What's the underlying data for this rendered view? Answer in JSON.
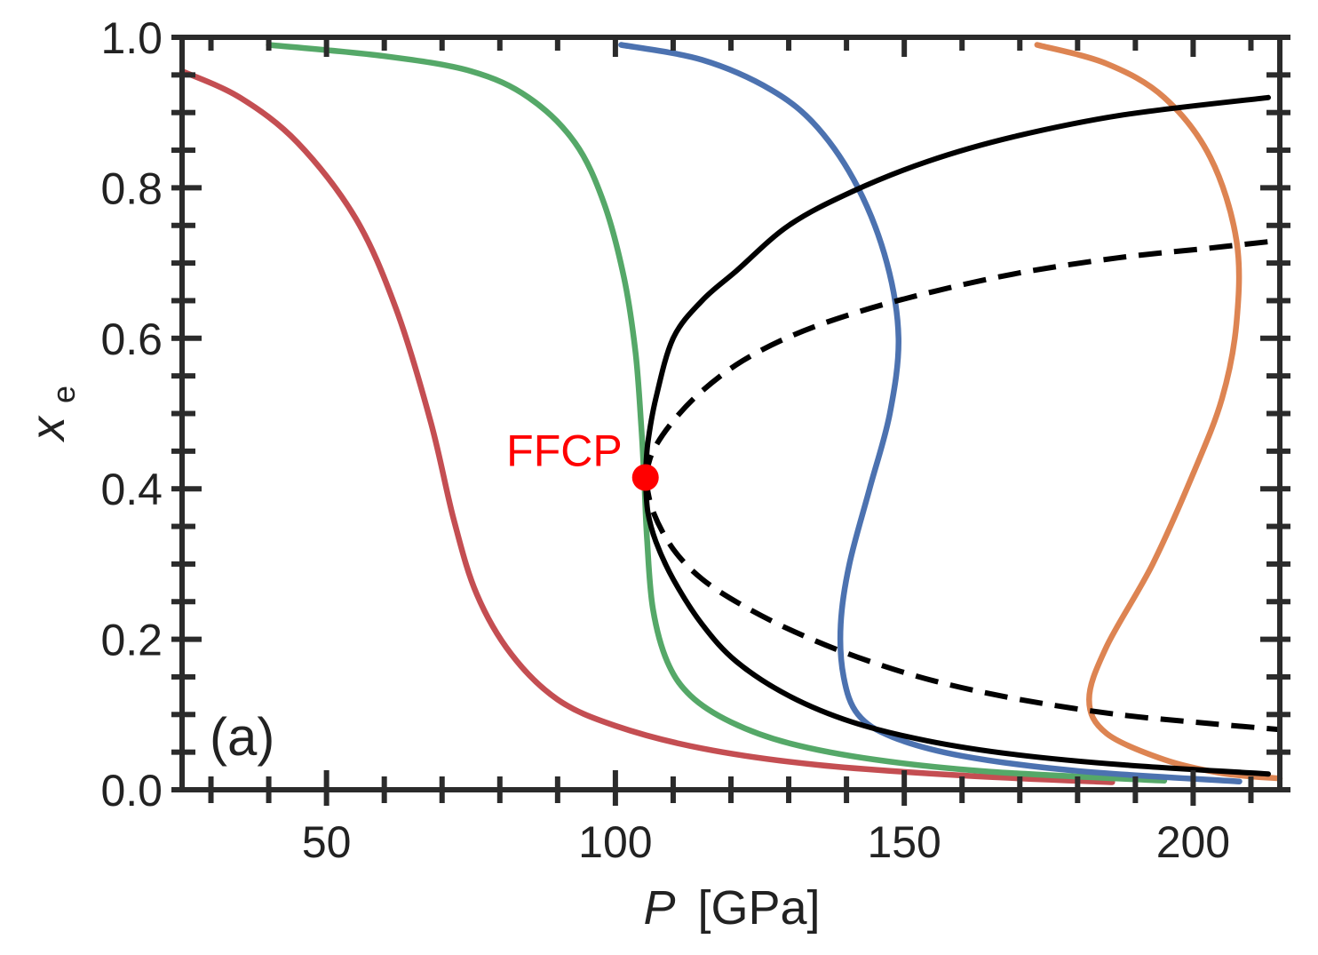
{
  "chart_data": {
    "type": "line",
    "title": "",
    "xlabel": {
      "symbol": "P",
      "unit": "[GPa]"
    },
    "ylabel": {
      "base": "x",
      "sub": "e"
    },
    "xlim": [
      25,
      215
    ],
    "ylim": [
      0.0,
      1.0
    ],
    "xticks": [
      50,
      100,
      150,
      200
    ],
    "xtick_labels": [
      "50",
      "100",
      "150",
      "200"
    ],
    "xminor": [
      30,
      40,
      60,
      70,
      80,
      90,
      110,
      120,
      130,
      140,
      160,
      170,
      180,
      190,
      210
    ],
    "yticks": [
      0.0,
      0.2,
      0.4,
      0.6,
      0.8,
      1.0
    ],
    "ytick_labels": [
      "0.0",
      "0.2",
      "0.4",
      "0.6",
      "0.8",
      "1.0"
    ],
    "yminor": [
      0.05,
      0.1,
      0.15,
      0.25,
      0.3,
      0.35,
      0.45,
      0.5,
      0.55,
      0.65,
      0.7,
      0.75,
      0.85,
      0.9,
      0.95
    ],
    "grid": false,
    "panel_label": "(a)",
    "series": [
      {
        "color": "#c44e52",
        "style": "solid",
        "points": [
          [
            25,
            0.955
          ],
          [
            35,
            0.92
          ],
          [
            45,
            0.86
          ],
          [
            55,
            0.76
          ],
          [
            62,
            0.64
          ],
          [
            68,
            0.49
          ],
          [
            72,
            0.36
          ],
          [
            76,
            0.26
          ],
          [
            82,
            0.18
          ],
          [
            90,
            0.12
          ],
          [
            100,
            0.085
          ],
          [
            115,
            0.055
          ],
          [
            135,
            0.033
          ],
          [
            160,
            0.019
          ],
          [
            186,
            0.01
          ]
        ]
      },
      {
        "color": "#55a868",
        "style": "solid",
        "points": [
          [
            40,
            0.99
          ],
          [
            60,
            0.975
          ],
          [
            75,
            0.955
          ],
          [
            85,
            0.92
          ],
          [
            93,
            0.86
          ],
          [
            98,
            0.78
          ],
          [
            101.5,
            0.68
          ],
          [
            103.5,
            0.58
          ],
          [
            104.5,
            0.48
          ],
          [
            105,
            0.41
          ],
          [
            105.5,
            0.33
          ],
          [
            106.5,
            0.24
          ],
          [
            109,
            0.17
          ],
          [
            113,
            0.125
          ],
          [
            120,
            0.09
          ],
          [
            130,
            0.062
          ],
          [
            145,
            0.04
          ],
          [
            165,
            0.024
          ],
          [
            195,
            0.012
          ]
        ]
      },
      {
        "color": "#4c72b0",
        "style": "solid",
        "points": [
          [
            101,
            0.99
          ],
          [
            115,
            0.97
          ],
          [
            127,
            0.93
          ],
          [
            135,
            0.88
          ],
          [
            142,
            0.8
          ],
          [
            147,
            0.7
          ],
          [
            149,
            0.6
          ],
          [
            147.5,
            0.5
          ],
          [
            144,
            0.4
          ],
          [
            140.5,
            0.3
          ],
          [
            139,
            0.22
          ],
          [
            139.5,
            0.15
          ],
          [
            142,
            0.1
          ],
          [
            148,
            0.07
          ],
          [
            160,
            0.045
          ],
          [
            180,
            0.025
          ],
          [
            208,
            0.011
          ]
        ]
      },
      {
        "color": "#dd8452",
        "style": "solid",
        "points": [
          [
            173,
            0.99
          ],
          [
            185,
            0.965
          ],
          [
            195,
            0.92
          ],
          [
            203,
            0.84
          ],
          [
            207.5,
            0.73
          ],
          [
            207.5,
            0.62
          ],
          [
            205,
            0.52
          ],
          [
            200,
            0.42
          ],
          [
            193,
            0.3
          ],
          [
            185,
            0.19
          ],
          [
            182,
            0.12
          ],
          [
            185,
            0.075
          ],
          [
            195,
            0.04
          ],
          [
            205,
            0.022
          ],
          [
            215,
            0.015
          ]
        ]
      },
      {
        "color": "#000000",
        "style": "solid",
        "points": [
          [
            105.2,
            0.415
          ],
          [
            105.6,
            0.46
          ],
          [
            107,
            0.52
          ],
          [
            110,
            0.6
          ],
          [
            115,
            0.65
          ],
          [
            121,
            0.69
          ],
          [
            130,
            0.75
          ],
          [
            141,
            0.795
          ],
          [
            154,
            0.835
          ],
          [
            169,
            0.868
          ],
          [
            188,
            0.897
          ],
          [
            213,
            0.92
          ]
        ]
      },
      {
        "color": "#000000",
        "style": "solid",
        "points": [
          [
            105.2,
            0.415
          ],
          [
            105.6,
            0.37
          ],
          [
            107,
            0.33
          ],
          [
            110,
            0.28
          ],
          [
            115,
            0.22
          ],
          [
            121,
            0.17
          ],
          [
            130,
            0.125
          ],
          [
            141,
            0.09
          ],
          [
            154,
            0.065
          ],
          [
            169,
            0.047
          ],
          [
            188,
            0.033
          ],
          [
            213,
            0.021
          ]
        ]
      },
      {
        "color": "#000000",
        "style": "dashed",
        "points": [
          [
            105.2,
            0.415
          ],
          [
            106.5,
            0.45
          ],
          [
            110,
            0.49
          ],
          [
            115,
            0.53
          ],
          [
            122,
            0.57
          ],
          [
            131,
            0.605
          ],
          [
            142,
            0.635
          ],
          [
            155,
            0.662
          ],
          [
            170,
            0.687
          ],
          [
            187,
            0.707
          ],
          [
            203,
            0.72
          ],
          [
            215,
            0.73
          ]
        ]
      },
      {
        "color": "#000000",
        "style": "dashed",
        "points": [
          [
            105.2,
            0.415
          ],
          [
            106.5,
            0.37
          ],
          [
            110,
            0.32
          ],
          [
            115,
            0.28
          ],
          [
            122,
            0.245
          ],
          [
            131,
            0.21
          ],
          [
            142,
            0.176
          ],
          [
            155,
            0.145
          ],
          [
            170,
            0.12
          ],
          [
            187,
            0.1
          ],
          [
            203,
            0.088
          ],
          [
            215,
            0.08
          ]
        ]
      }
    ],
    "annotation": {
      "label": "FFCP",
      "x": 105.2,
      "y": 0.415,
      "color": "#ff0000"
    }
  }
}
